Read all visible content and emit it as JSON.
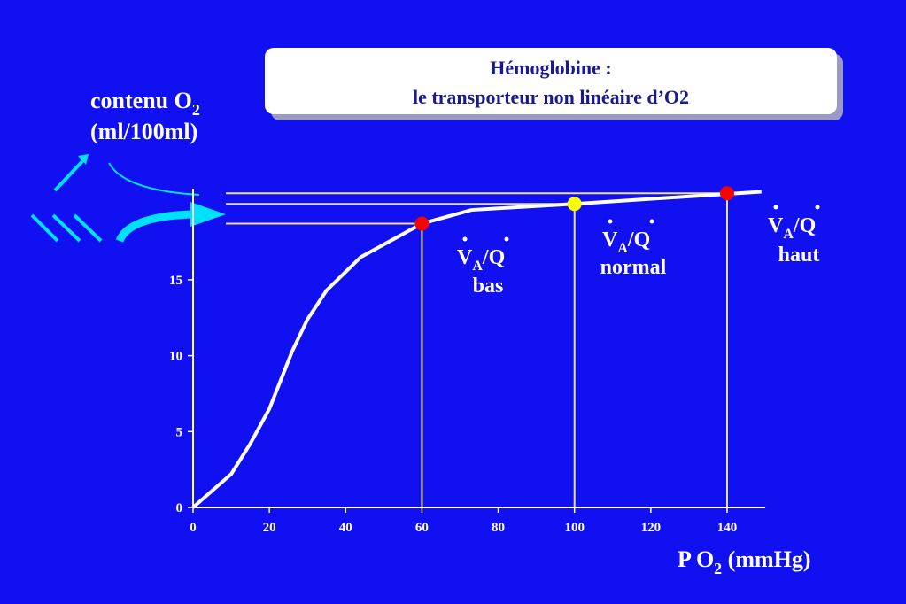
{
  "chart_data": {
    "type": "line",
    "title": [
      "Hémoglobine :",
      "le transporteur non linéaire d’O2"
    ],
    "y_label": {
      "text": "contenu O",
      "sub": "2",
      "line2": "(ml/100ml)"
    },
    "x_label": {
      "text": "P O",
      "sub": "2",
      "rest": " (mmHg)"
    },
    "x": [
      0,
      10,
      15,
      20,
      26,
      30,
      35,
      44,
      60,
      73,
      100,
      149
    ],
    "series": [
      {
        "color": "#ffffff",
        "values": [
          0,
          2.2,
          4.2,
          6.5,
          10.3,
          12.4,
          14.3,
          16.5,
          18.7,
          19.6,
          20.0,
          20.8
        ]
      }
    ],
    "points": {
      "x": [
        60,
        100,
        140
      ],
      "y": [
        18.7,
        20.0,
        20.7
      ],
      "colors": [
        "#ff0000",
        "#ffff00",
        "#ff0000"
      ]
    },
    "annotations": [
      {
        "v": "V",
        "sub": "A",
        "q": "/Q",
        "label": "bas"
      },
      {
        "v": "V",
        "sub": "A",
        "q": "/Q",
        "label": "normal"
      },
      {
        "v": "V",
        "sub": "A",
        "q": "/Q",
        "label": "haut"
      }
    ],
    "xlim": [
      0,
      150
    ],
    "ylim": [
      0,
      21
    ],
    "xticks": [
      0,
      20,
      40,
      60,
      80,
      100,
      120,
      140
    ],
    "yticks": [
      0,
      5,
      10,
      15
    ]
  }
}
